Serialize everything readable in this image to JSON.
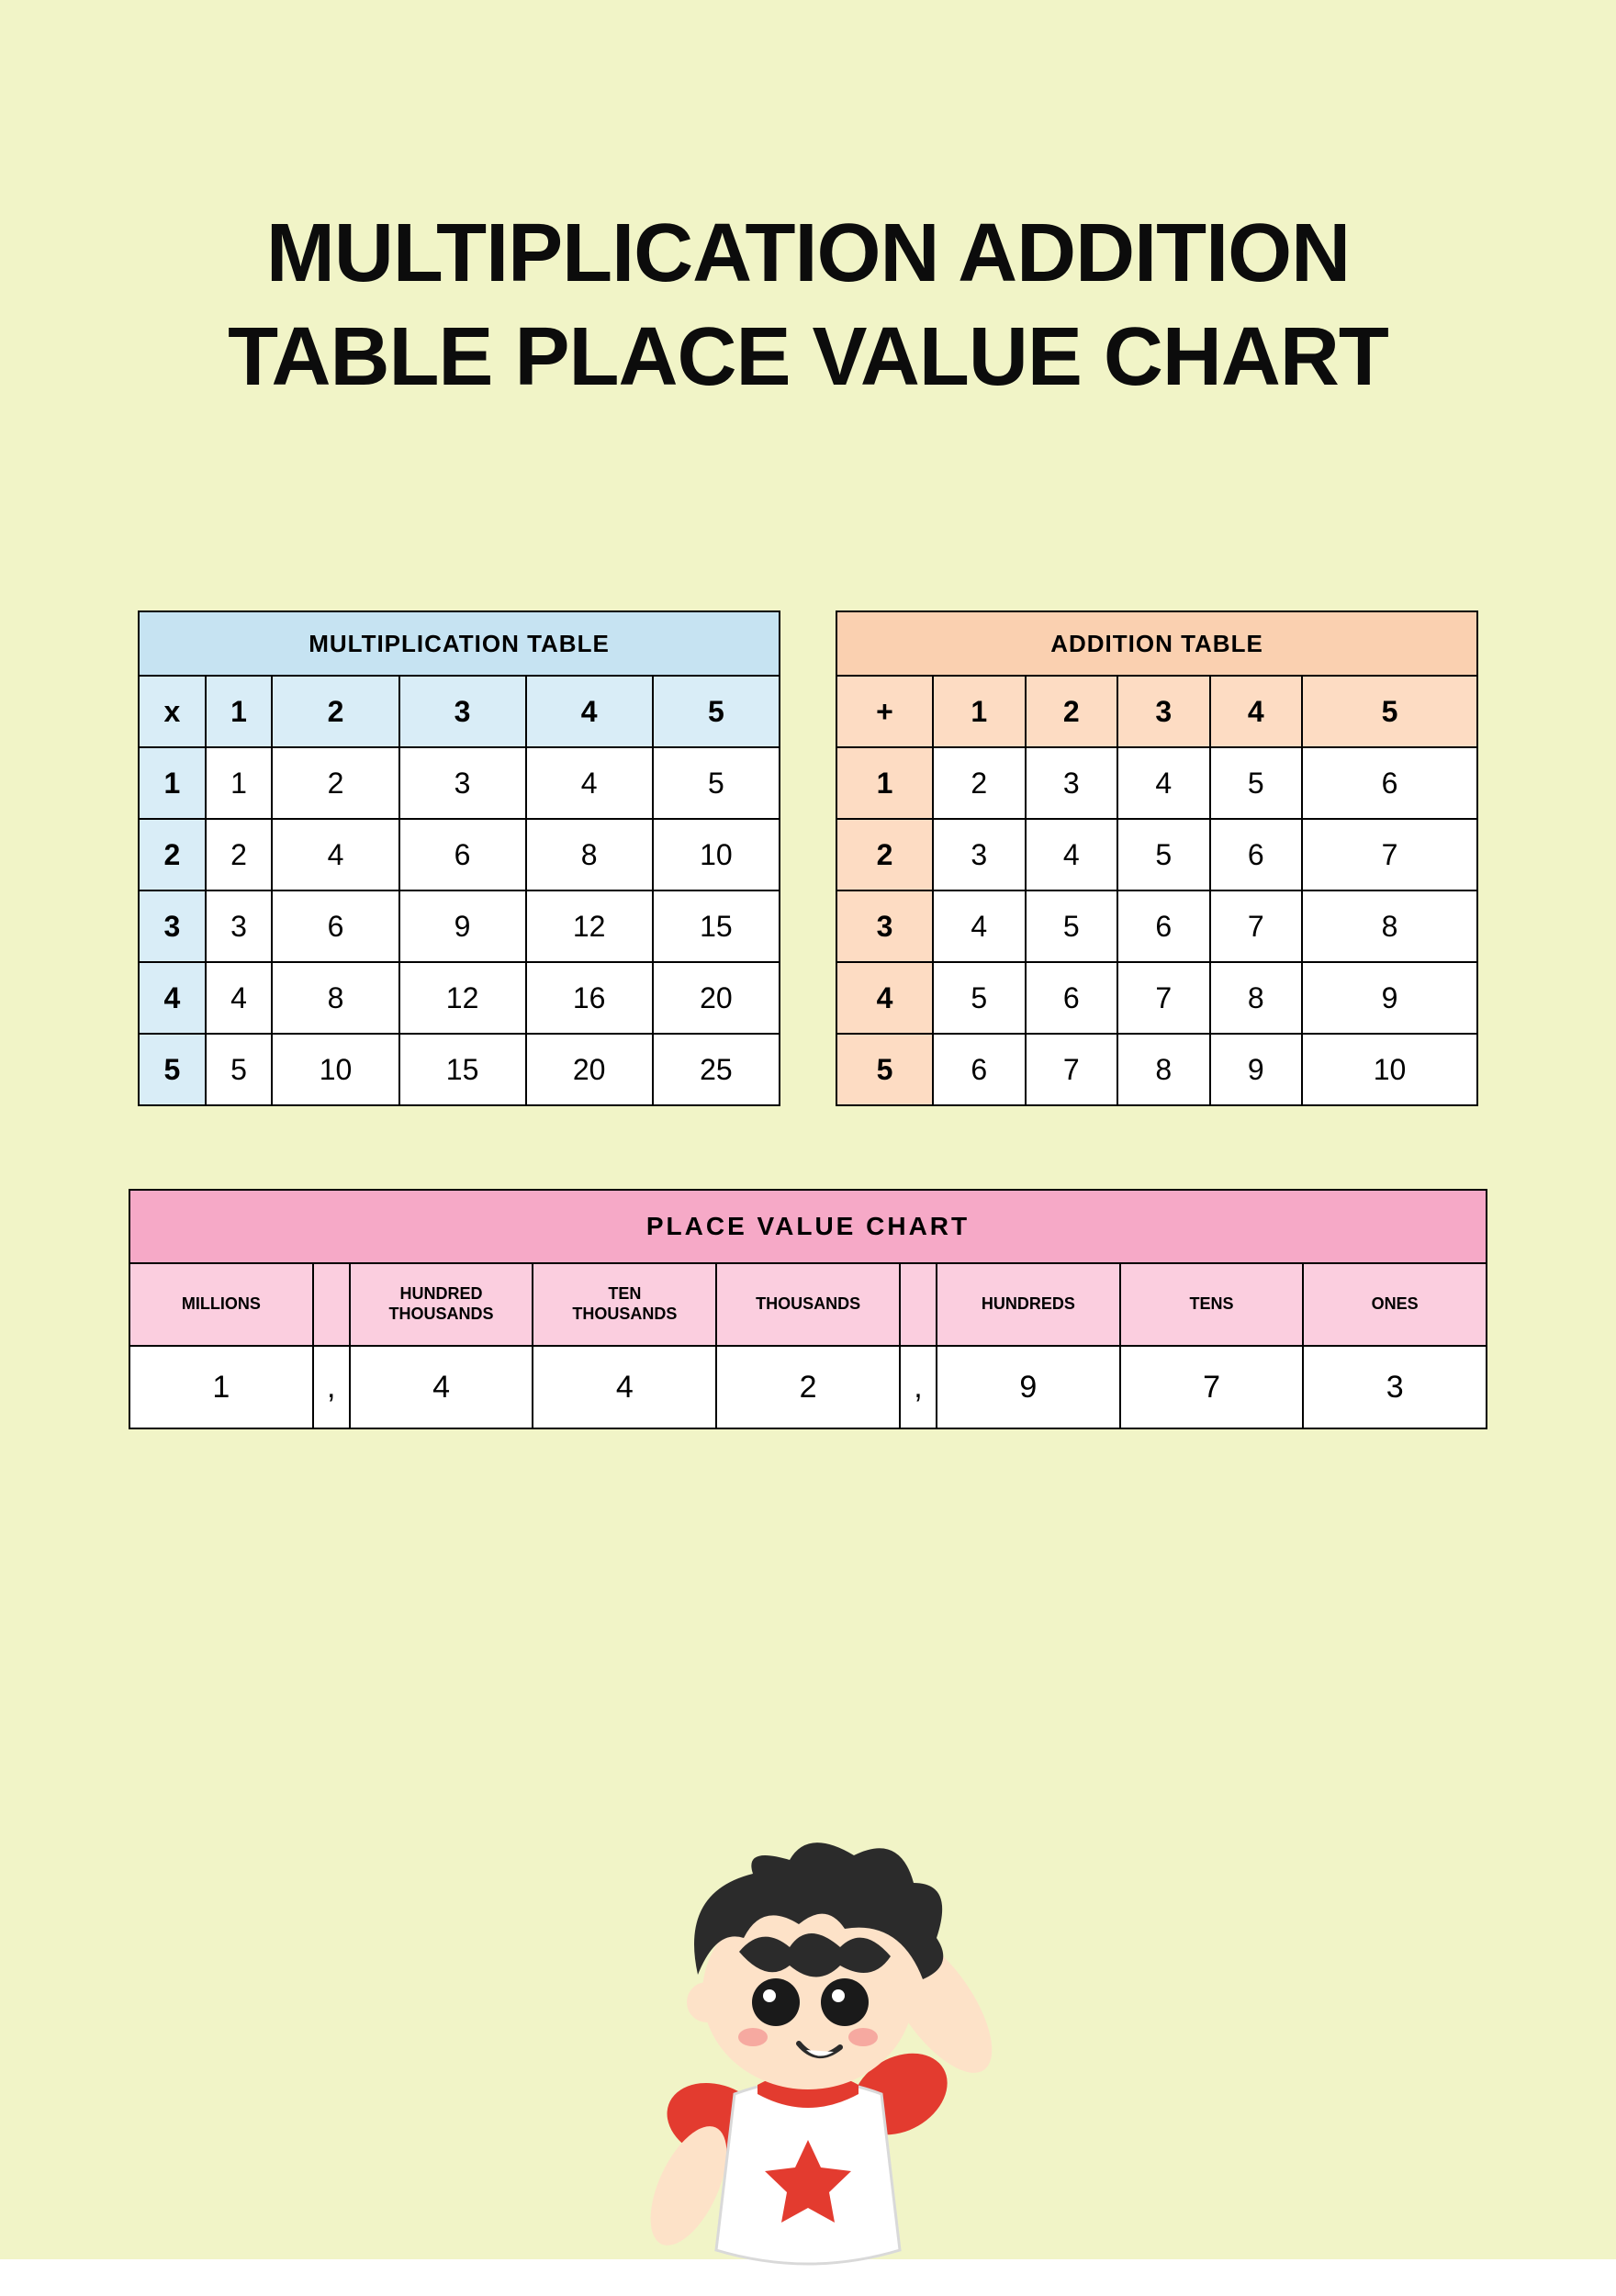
{
  "colors": {
    "page_bg": "#f1f4c7",
    "title_color": "#0c0c0c",
    "mult_header_bg": "#c6e3f2",
    "mult_axis_bg": "#d9edf7",
    "add_header_bg": "#fad0b0",
    "add_axis_bg": "#fddcc3",
    "pv_title_bg": "#f6a9c7",
    "pv_header_bg": "#fbcedf",
    "cell_bg": "#ffffff",
    "border": "#000000"
  },
  "title": "MULTIPLICATION ADDITION TABLE PLACE VALUE CHART",
  "multiplication": {
    "title": "MULTIPLICATION TABLE",
    "corner": "x",
    "col_headers": [
      "1",
      "2",
      "3",
      "4",
      "5"
    ],
    "row_headers": [
      "1",
      "2",
      "3",
      "4",
      "5"
    ],
    "rows": [
      [
        "1",
        "2",
        "3",
        "4",
        "5"
      ],
      [
        "2",
        "4",
        "6",
        "8",
        "10"
      ],
      [
        "3",
        "6",
        "9",
        "12",
        "15"
      ],
      [
        "4",
        "8",
        "12",
        "16",
        "20"
      ],
      [
        "5",
        "10",
        "15",
        "20",
        "25"
      ]
    ]
  },
  "addition": {
    "title": "ADDITION TABLE",
    "corner": "+",
    "col_headers": [
      "1",
      "2",
      "3",
      "4",
      "5"
    ],
    "row_headers": [
      "1",
      "2",
      "3",
      "4",
      "5"
    ],
    "rows": [
      [
        "2",
        "3",
        "4",
        "5",
        "6"
      ],
      [
        "3",
        "4",
        "5",
        "6",
        "7"
      ],
      [
        "4",
        "5",
        "6",
        "7",
        "8"
      ],
      [
        "5",
        "6",
        "7",
        "8",
        "9"
      ],
      [
        "6",
        "7",
        "8",
        "9",
        "10"
      ]
    ]
  },
  "place_value": {
    "title": "PLACE VALUE CHART",
    "columns": [
      "MILLIONS",
      "",
      "HUNDRED THOUSANDS",
      "TEN THOUSANDS",
      "THOUSANDS",
      "",
      "HUNDREDS",
      "TENS",
      "ONES"
    ],
    "values": [
      "1",
      ",",
      "4",
      "4",
      "2",
      ",",
      "9",
      "7",
      "3"
    ]
  },
  "kid": {
    "hair_color": "#2b2b2b",
    "skin_color": "#fde2c8",
    "shirt_body": "#ffffff",
    "shirt_sleeve": "#e33b2f",
    "star_color": "#e33b2f",
    "eye_color": "#1a1a1a",
    "cheek_color": "#f6a9a0"
  }
}
